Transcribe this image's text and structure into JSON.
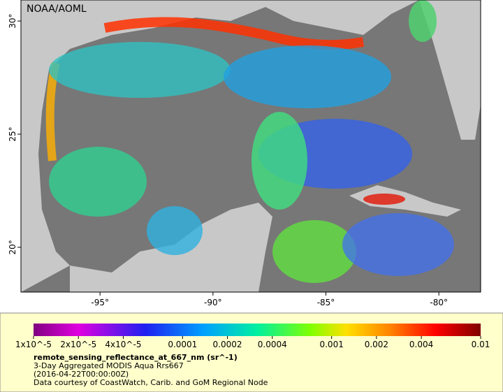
{
  "map": {
    "label": "NOAA/AOML",
    "lon_range": [
      -98.5,
      -78.15
    ],
    "lat_range": [
      18.02,
      30.93
    ],
    "lon_ticks": [
      {
        "value": -95,
        "label": "-95°"
      },
      {
        "value": -90,
        "label": "-90°"
      },
      {
        "value": -85,
        "label": "-85°"
      },
      {
        "value": -80,
        "label": "-80°"
      }
    ],
    "lat_ticks": [
      {
        "value": 20,
        "label": "20°"
      },
      {
        "value": 25,
        "label": "25°"
      },
      {
        "value": 30,
        "label": "30°"
      }
    ]
  },
  "colorbar": {
    "range": [
      1e-05,
      0.01
    ],
    "log_scale": true,
    "ticks": [
      {
        "value": 1e-05,
        "label": "1x10^-5"
      },
      {
        "value": 2e-05,
        "label": "2x10^-5"
      },
      {
        "value": 4e-05,
        "label": "4x10^-5"
      },
      0.0001,
      0.0002,
      0.0004,
      0.001,
      0.002,
      0.004,
      0.01
    ]
  },
  "legend": {
    "variable": "remote_sensing_reflectance_at_667_nm (sr^-1)",
    "product": "3-Day Aggregated MODIS Aqua Rrs667",
    "date": "(2016-04-22T00:00:00Z)",
    "credit": "Data courtesy of CoastWatch, Carib. and GoM Regional Node"
  }
}
